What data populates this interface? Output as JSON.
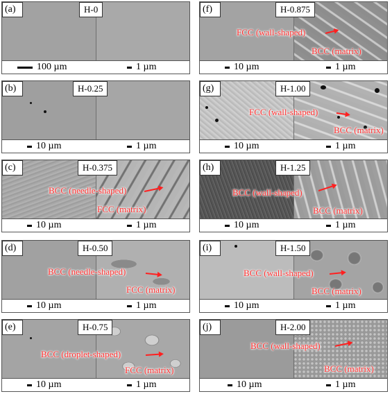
{
  "panels": [
    {
      "letter": "(a)",
      "sample": "H-0",
      "scale_left": "100 µm",
      "scale_right": "1 µm",
      "annotations": []
    },
    {
      "letter": "(b)",
      "sample": "H-0.25",
      "scale_left": "10 µm",
      "scale_right": "1 µm",
      "annotations": []
    },
    {
      "letter": "(c)",
      "sample": "H-0.375",
      "scale_left": "10 µm",
      "scale_right": "1 µm",
      "annotations": [
        "BCC (needle-shaped)",
        "FCC (matrix)"
      ]
    },
    {
      "letter": "(d)",
      "sample": "H-0.50",
      "scale_left": "10 µm",
      "scale_right": "1 µm",
      "annotations": [
        "BCC (needle-shaped)",
        "FCC (matrix)"
      ]
    },
    {
      "letter": "(e)",
      "sample": "H-0.75",
      "scale_left": "10 µm",
      "scale_right": "1 µm",
      "annotations": [
        "BCC (droplet-shaped)",
        "FCC (matrix)"
      ]
    },
    {
      "letter": "(f)",
      "sample": "H-0.875",
      "scale_left": "10 µm",
      "scale_right": "1 µm",
      "annotations": [
        "FCC (wall-shaped)",
        "BCC (matrix)"
      ]
    },
    {
      "letter": "(g)",
      "sample": "H-1.00",
      "scale_left": "10 µm",
      "scale_right": "1 µm",
      "annotations": [
        "FCC (wall-shaped)",
        "BCC (matrix)"
      ]
    },
    {
      "letter": "(h)",
      "sample": "H-1.25",
      "scale_left": "10 µm",
      "scale_right": "1 µm",
      "annotations": [
        "BCC (wall-shaped)",
        "BCC (matrix)"
      ]
    },
    {
      "letter": "(i)",
      "sample": "H-1.50",
      "scale_left": "10 µm",
      "scale_right": "1 µm",
      "annotations": [
        "BCC (wall-shaped)",
        "BCC (matrix)"
      ]
    },
    {
      "letter": "(j)",
      "sample": "H-2.00",
      "scale_left": "10 µm",
      "scale_right": "1 µm",
      "annotations": [
        "BCC (wall-shaped)",
        "BCC (matrix)"
      ]
    }
  ],
  "colors": {
    "annotation": "#ff3030",
    "frame": "#555555"
  }
}
